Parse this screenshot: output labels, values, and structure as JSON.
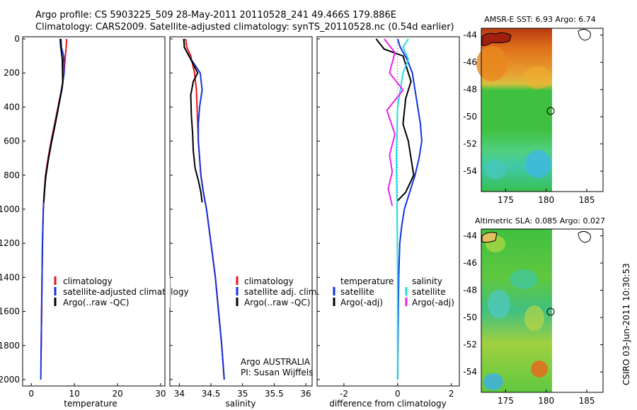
{
  "title": {
    "line1": "Argo profile: CS 5903225_509 28-May-2011 20110528_241 49.466S 179.886E",
    "line2": "Climatology: CARS2009. Satellite-adjusted climatology: synTS_20110528.nc (0.54d earlier)"
  },
  "colors": {
    "climatology": "#ee1111",
    "satellite": "#1133dd",
    "argo": "#000000",
    "satellite_sal": "#22dddd",
    "argo_sal": "#ee22ee"
  },
  "chart_data": [
    {
      "id": "temperature-profile",
      "type": "line",
      "xlabel": "temperature",
      "ylabel": "",
      "xlim": [
        -2,
        31
      ],
      "ylim": [
        2050,
        0
      ],
      "xticks": [
        "0",
        "10",
        "20",
        "30"
      ],
      "yticks": [
        "0",
        "200",
        "400",
        "600",
        "800",
        "1000",
        "1200",
        "1400",
        "1600",
        "1800",
        "2000"
      ],
      "legend": [
        "climatology",
        "satellite-adjusted climatology",
        "Argo(..raw -QC)"
      ],
      "series": [
        {
          "name": "climatology",
          "color": "#ee1111",
          "x": [
            8.2,
            8.1,
            7.9,
            7.6,
            7.0,
            6.2,
            5.4,
            4.6,
            3.9,
            3.3,
            3.0,
            2.8,
            2.6,
            2.5,
            2.4,
            2.3,
            2.25
          ],
          "y": [
            0,
            50,
            100,
            200,
            300,
            400,
            500,
            600,
            700,
            800,
            900,
            1000,
            1200,
            1400,
            1600,
            1800,
            1870
          ]
        },
        {
          "name": "satellite-adjusted climatology",
          "color": "#1133dd",
          "x": [
            6.9,
            7.0,
            7.5,
            7.6,
            7.1,
            6.3,
            5.5,
            4.7,
            4.0,
            3.4,
            3.0,
            2.8,
            2.6,
            2.5,
            2.4,
            2.3,
            2.25,
            2.2
          ],
          "y": [
            0,
            50,
            100,
            200,
            300,
            400,
            500,
            600,
            700,
            800,
            900,
            1000,
            1200,
            1400,
            1600,
            1800,
            1900,
            2000
          ]
        },
        {
          "name": "Argo(..raw -QC)",
          "color": "#000000",
          "x": [
            6.7,
            6.8,
            7.2,
            7.3,
            6.8,
            6.1,
            5.4,
            4.6,
            3.9,
            3.3,
            2.9
          ],
          "y": [
            0,
            40,
            120,
            260,
            330,
            430,
            520,
            620,
            720,
            820,
            960
          ]
        }
      ]
    },
    {
      "id": "salinity-profile",
      "type": "line",
      "xlabel": "salinity",
      "ylabel": "",
      "xlim": [
        33.85,
        36.1
      ],
      "ylim": [
        2050,
        0
      ],
      "xticks": [
        "34",
        "34.5",
        "35",
        "35.5",
        "36"
      ],
      "legend": [
        "climatology",
        "satellite adj. clim.",
        "Argo(..raw -QC)"
      ],
      "series": [
        {
          "name": "climatology",
          "color": "#ee1111",
          "x": [
            34.1,
            34.12,
            34.18,
            34.24,
            34.27,
            34.28,
            34.29,
            34.3,
            34.32,
            34.34,
            34.38,
            34.43,
            34.5,
            34.57,
            34.62,
            34.67,
            34.71
          ],
          "y": [
            0,
            50,
            100,
            200,
            300,
            400,
            500,
            600,
            700,
            800,
            900,
            1000,
            1200,
            1400,
            1600,
            1800,
            2000
          ]
        },
        {
          "name": "satellite adj. clim.",
          "color": "#1133dd",
          "x": [
            34.07,
            34.08,
            34.15,
            34.33,
            34.36,
            34.32,
            34.3,
            34.3,
            34.32,
            34.34,
            34.38,
            34.43,
            34.5,
            34.57,
            34.62,
            34.67,
            34.71
          ],
          "y": [
            0,
            50,
            100,
            200,
            300,
            400,
            500,
            600,
            700,
            800,
            900,
            1000,
            1200,
            1400,
            1600,
            1800,
            2000
          ]
        },
        {
          "name": "Argo(..raw -QC)",
          "color": "#000000",
          "x": [
            34.07,
            34.08,
            34.14,
            34.29,
            34.22,
            34.18,
            34.19,
            34.21,
            34.22,
            34.25,
            34.3,
            34.34,
            34.36
          ],
          "y": [
            0,
            50,
            90,
            200,
            250,
            330,
            450,
            560,
            660,
            760,
            830,
            900,
            960
          ]
        }
      ]
    },
    {
      "id": "difference-profile",
      "type": "line",
      "xlabel": "difference from climatology",
      "ylabel": "",
      "xlim": [
        -3,
        2.3
      ],
      "ylim": [
        2050,
        0
      ],
      "xticks": [
        "-2",
        "0",
        "2"
      ],
      "legend": [
        "temperature",
        "satellite",
        "Argo(-adj)",
        "salinity",
        "satellite",
        "Argo(-adj)"
      ],
      "series": [
        {
          "name": "temperature satellite",
          "color": "#1133dd",
          "x": [
            0.0,
            0.1,
            0.35,
            0.55,
            0.65,
            0.75,
            0.85,
            0.9,
            0.8,
            0.65,
            0.45,
            0.25,
            0.15,
            0.08,
            0.04,
            0.02,
            0.0
          ],
          "y": [
            0,
            50,
            120,
            200,
            300,
            400,
            500,
            600,
            700,
            800,
            900,
            1000,
            1100,
            1200,
            1400,
            1700,
            2000
          ]
        },
        {
          "name": "temperature Argo(-adj)",
          "color": "#000000",
          "x": [
            -0.8,
            -0.5,
            0.2,
            0.4,
            0.5,
            0.3,
            0.2,
            0.4,
            0.5,
            0.6,
            0.3,
            0.0
          ],
          "y": [
            0,
            60,
            100,
            200,
            250,
            350,
            500,
            600,
            700,
            800,
            900,
            950
          ]
        },
        {
          "name": "salinity satellite",
          "color": "#22dddd",
          "x": [
            0.4,
            0.2,
            0.4,
            0.2,
            0.0,
            -0.05,
            -0.02,
            0.0,
            0.0,
            0.0
          ],
          "y": [
            0,
            50,
            120,
            200,
            400,
            700,
            1000,
            1400,
            1700,
            2000
          ]
        },
        {
          "name": "salinity Argo(-adj)",
          "color": "#ee22ee",
          "x": [
            -0.5,
            -0.1,
            -0.3,
            0.2,
            -0.4,
            -0.1,
            -0.3,
            -0.2,
            -0.35,
            -0.2
          ],
          "y": [
            0,
            80,
            200,
            300,
            420,
            560,
            680,
            780,
            880,
            980
          ]
        }
      ]
    },
    {
      "id": "sst-map",
      "type": "heatmap",
      "title": "AMSR-E SST: 6.93 Argo: 6.74",
      "xticks": [
        "175",
        "180",
        "185"
      ],
      "yticks": [
        "-44",
        "-46",
        "-48",
        "-50",
        "-52",
        "-54"
      ],
      "float_position": {
        "lon": 179.886,
        "lat": -49.466
      }
    },
    {
      "id": "sla-map",
      "type": "heatmap",
      "title": "Altimetric SLA: 0.085 Argo: 0.027",
      "xticks": [
        "175",
        "180",
        "185"
      ],
      "yticks": [
        "-44",
        "-46",
        "-48",
        "-50",
        "-52",
        "-54"
      ],
      "float_position": {
        "lon": 179.886,
        "lat": -49.466
      }
    }
  ],
  "panel2_note": {
    "line1": "Argo AUSTRALIA",
    "line2": "PI: Susan Wijffels"
  },
  "timestamp": "CSIRO 03-Jun-2011 10:30:53"
}
